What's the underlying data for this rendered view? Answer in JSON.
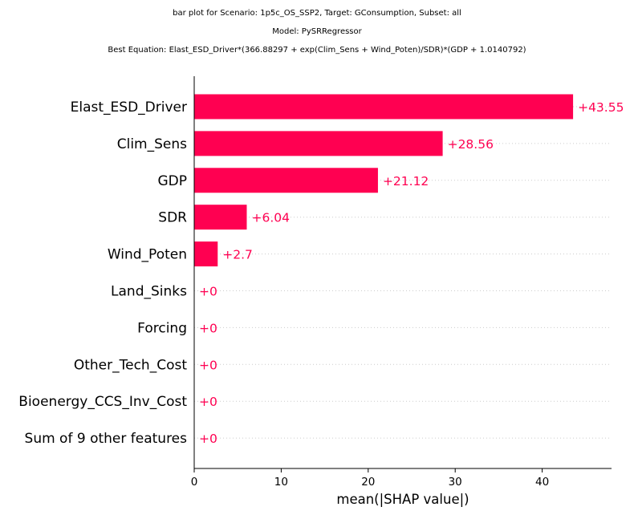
{
  "chart_data": {
    "type": "bar",
    "orientation": "horizontal",
    "title_lines": [
      "bar plot for Scenario: 1p5c_OS_SSP2, Target: GConsumption, Subset: all",
      "Model: PySRRegressor",
      "Best Equation: Elast_ESD_Driver*(366.88297 + exp(Clim_Sens + Wind_Poten)/SDR)*(GDP + 1.0140792)"
    ],
    "categories": [
      "Elast_ESD_Driver",
      "Clim_Sens",
      "GDP",
      "SDR",
      "Wind_Poten",
      "Land_Sinks",
      "Forcing",
      "Other_Tech_Cost",
      "Bioenergy_CCS_Inv_Cost",
      "Sum of 9 other features"
    ],
    "values": [
      43.55,
      28.56,
      21.12,
      6.04,
      2.7,
      0,
      0,
      0,
      0,
      0
    ],
    "value_labels": [
      "+43.55",
      "+28.56",
      "+21.12",
      "+6.04",
      "+2.7",
      "+0",
      "+0",
      "+0",
      "+0",
      "+0"
    ],
    "xlabel": "mean(|SHAP value|)",
    "ylabel": "",
    "xlim": [
      0,
      48
    ],
    "xticks": [
      0,
      10,
      20,
      30,
      40
    ],
    "xtick_labels": [
      "0",
      "10",
      "20",
      "30",
      "40"
    ],
    "grid": "dotted horizontal guide lines per row",
    "legend": "none",
    "colors": {
      "bar": "#ff0051",
      "value_label": "#ff0051",
      "guide_line": "#cccccc",
      "axis": "#000000"
    }
  }
}
